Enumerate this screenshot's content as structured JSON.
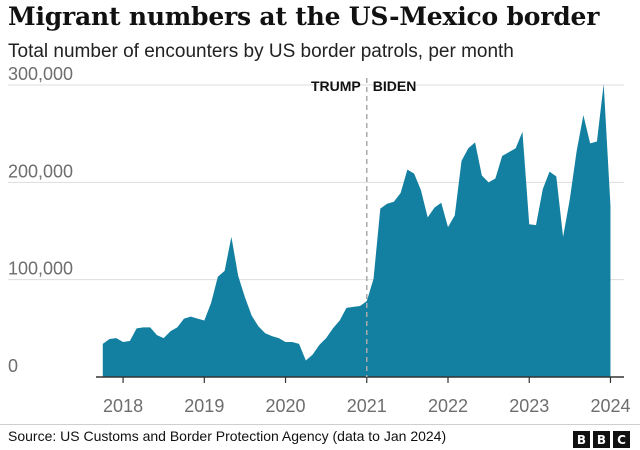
{
  "header": {
    "title": "Migrant numbers at the US-Mexico border",
    "subtitle": "Total number of encounters by US border patrols, per month"
  },
  "footer": {
    "source": "Source: US Customs and Border Protection Agency (data to Jan 2024)",
    "logo": [
      "B",
      "B",
      "C"
    ]
  },
  "colors": {
    "area": "#1380A1",
    "grid": "#dddddd",
    "axis": "#333333",
    "divider": "#aaaaaa",
    "text": "#222222",
    "muted": "#6e6e6e"
  },
  "chart_data": {
    "type": "area",
    "title": "Migrant numbers at the US-Mexico border",
    "subtitle": "Total number of encounters by US border patrols, per month",
    "ylim": [
      0,
      300000
    ],
    "yticks": [
      0,
      100000,
      200000,
      300000
    ],
    "ytick_labels": [
      "0",
      "100,000",
      "200,000",
      "300,000"
    ],
    "xlim": [
      "2017-09",
      "2024-03"
    ],
    "xticks": [
      2018,
      2019,
      2020,
      2021,
      2022,
      2023,
      2024
    ],
    "xtick_labels": [
      "2018",
      "2019",
      "2020",
      "2021",
      "2022",
      "2023",
      "2024"
    ],
    "grid": true,
    "annotations": {
      "divider_date": "2021-01",
      "left_label": "TRUMP",
      "right_label": "BIDEN"
    },
    "series": [
      {
        "dates": [
          "2017-10",
          "2017-11",
          "2017-12",
          "2018-01",
          "2018-02",
          "2018-03",
          "2018-04",
          "2018-05",
          "2018-06",
          "2018-07",
          "2018-08",
          "2018-09",
          "2018-10",
          "2018-11",
          "2018-12",
          "2019-01",
          "2019-02",
          "2019-03",
          "2019-04",
          "2019-05",
          "2019-06",
          "2019-07",
          "2019-08",
          "2019-09",
          "2019-10",
          "2019-11",
          "2019-12",
          "2020-01",
          "2020-02",
          "2020-03",
          "2020-04",
          "2020-05",
          "2020-06",
          "2020-07",
          "2020-08",
          "2020-09",
          "2020-10",
          "2020-11",
          "2020-12",
          "2021-01",
          "2021-02",
          "2021-03",
          "2021-04",
          "2021-05",
          "2021-06",
          "2021-07",
          "2021-08",
          "2021-09",
          "2021-10",
          "2021-11",
          "2021-12",
          "2022-01",
          "2022-02",
          "2022-03",
          "2022-04",
          "2022-05",
          "2022-06",
          "2022-07",
          "2022-08",
          "2022-09",
          "2022-10",
          "2022-11",
          "2022-12",
          "2023-01",
          "2023-02",
          "2023-03",
          "2023-04",
          "2023-05",
          "2023-06",
          "2023-07",
          "2023-08",
          "2023-09",
          "2023-10",
          "2023-11",
          "2023-12",
          "2024-01"
        ],
        "values": [
          34000,
          39000,
          40000,
          36000,
          37000,
          50000,
          51000,
          51000,
          43000,
          40000,
          47000,
          51000,
          60000,
          62000,
          60000,
          58000,
          76000,
          103000,
          109000,
          144000,
          104000,
          82000,
          63000,
          52000,
          45000,
          42000,
          40000,
          36000,
          36000,
          34000,
          17000,
          23000,
          33000,
          40000,
          50000,
          58000,
          71000,
          72000,
          73000,
          78000,
          101000,
          173000,
          178000,
          180000,
          189000,
          213000,
          209000,
          192000,
          164000,
          174000,
          179000,
          154000,
          166000,
          222000,
          235000,
          241000,
          207000,
          200000,
          204000,
          227000,
          231000,
          235000,
          252000,
          157000,
          156000,
          193000,
          211000,
          206000,
          144000,
          183000,
          232000,
          269000,
          240000,
          242000,
          301000,
          176000
        ]
      }
    ]
  }
}
